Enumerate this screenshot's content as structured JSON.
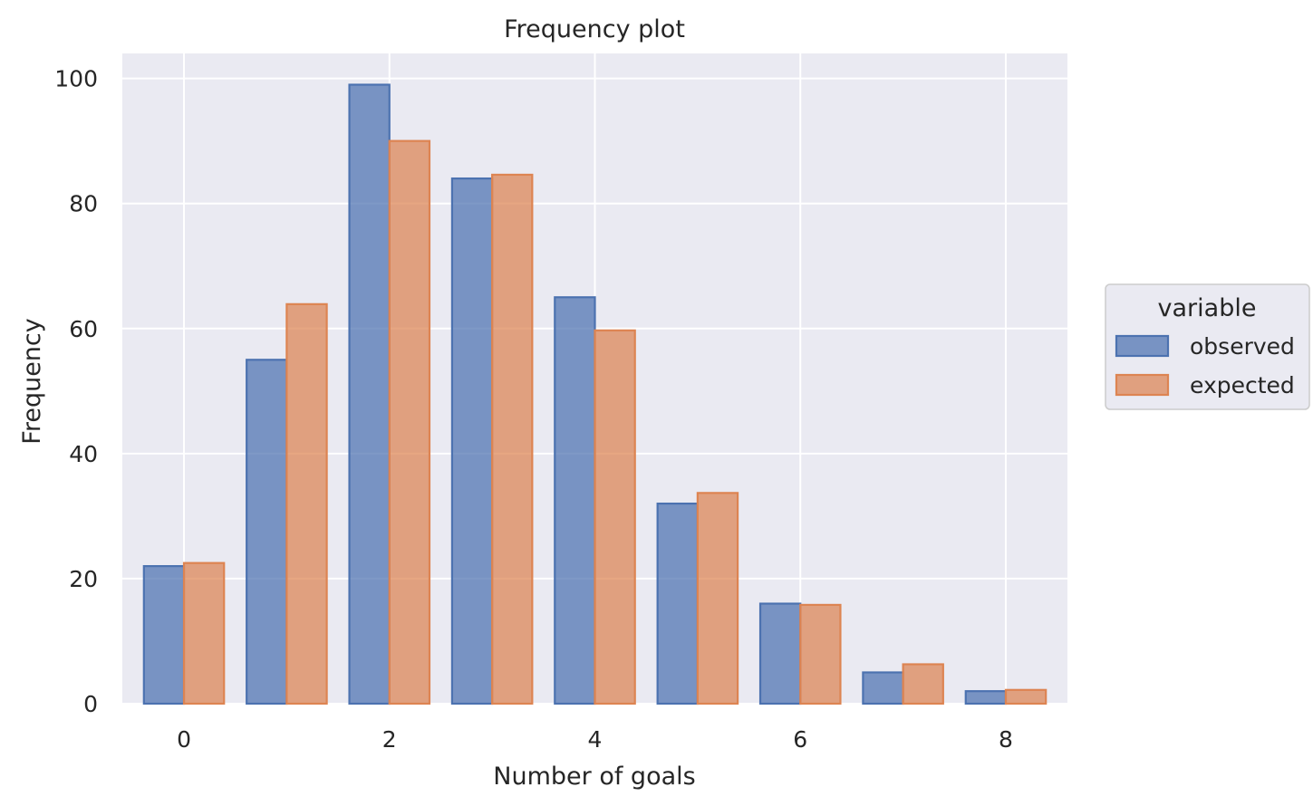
{
  "chart_data": {
    "type": "bar",
    "title": "Frequency plot",
    "xlabel": "Number of goals",
    "ylabel": "Frequency",
    "x": [
      0,
      1,
      2,
      3,
      4,
      5,
      6,
      7,
      8
    ],
    "xticks": [
      "0",
      "2",
      "4",
      "6",
      "8"
    ],
    "yticks": [
      "0",
      "20",
      "40",
      "60",
      "80",
      "100"
    ],
    "xlim": [
      -0.6,
      8.6
    ],
    "ylim": [
      0,
      104
    ],
    "grid": true,
    "legend": {
      "title": "variable",
      "placement": "right"
    },
    "series": [
      {
        "name": "observed",
        "color": "#4c72b0",
        "values": [
          22,
          55,
          99,
          84,
          65,
          32,
          16,
          5,
          2
        ]
      },
      {
        "name": "expected",
        "color": "#dd8452",
        "values": [
          22.5,
          63.9,
          90.0,
          84.6,
          59.7,
          33.7,
          15.8,
          6.3,
          2.2
        ]
      }
    ]
  }
}
